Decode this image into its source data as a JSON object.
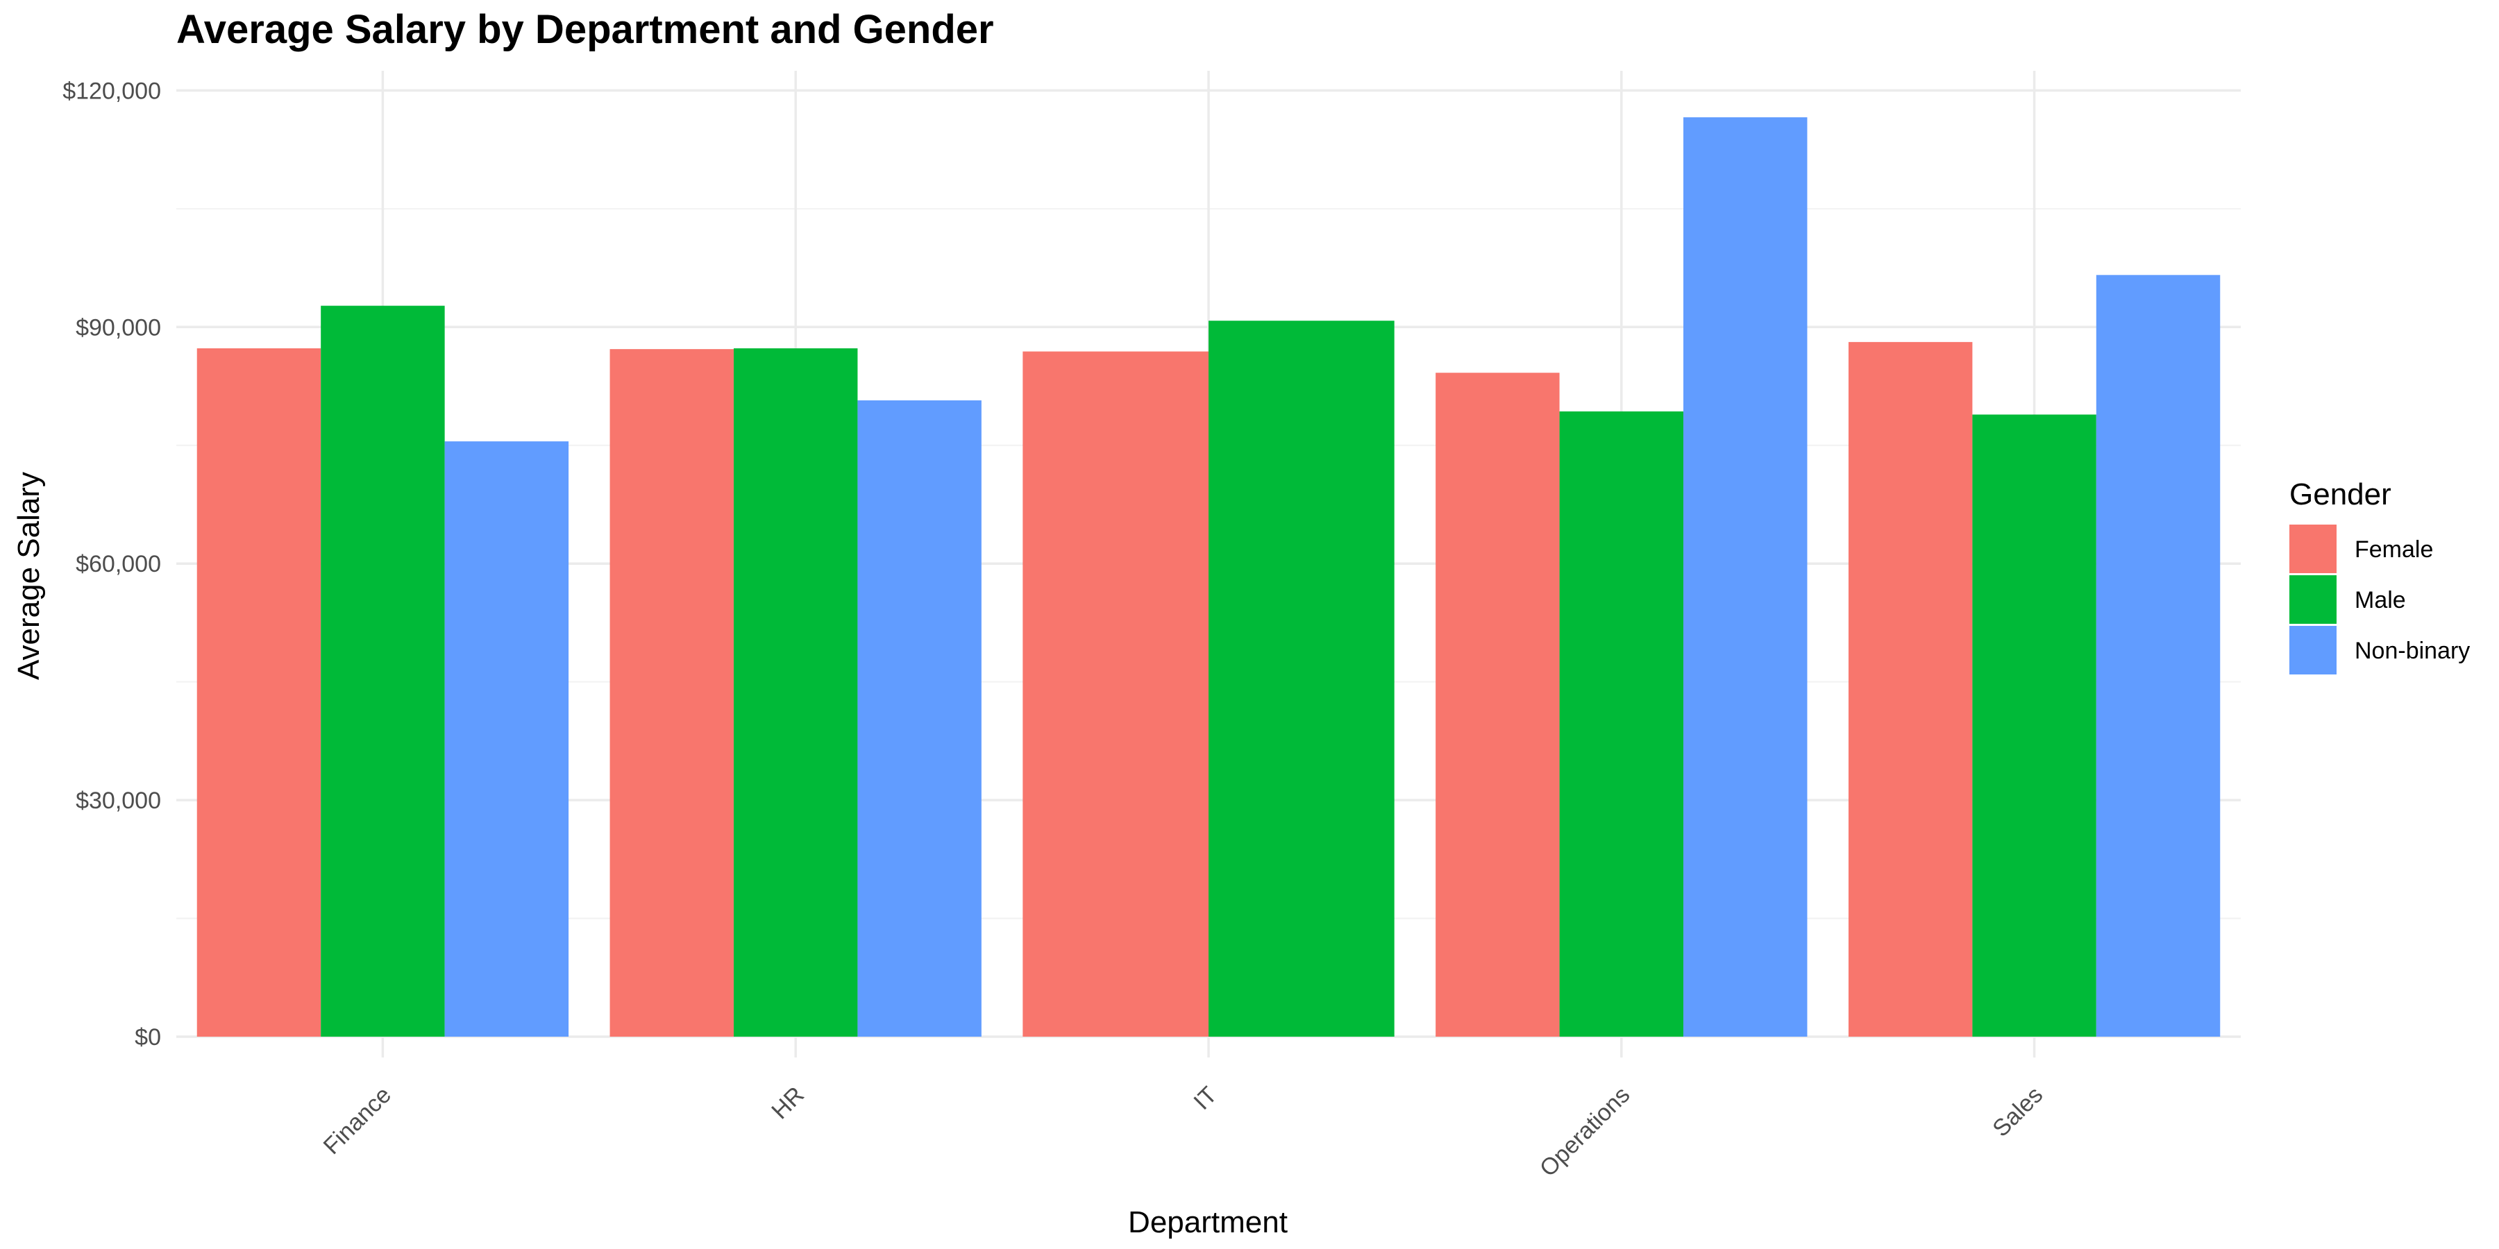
{
  "chart_data": {
    "type": "bar",
    "title": "Average Salary by Department and Gender",
    "xlabel": "Department",
    "ylabel": "Average Salary",
    "categories": [
      "Finance",
      "HR",
      "IT",
      "Operations",
      "Sales"
    ],
    "series": [
      {
        "name": "Female",
        "color": "#F8766D",
        "values": [
          87300,
          87200,
          86900,
          84200,
          88100
        ]
      },
      {
        "name": "Male",
        "color": "#00BA38",
        "values": [
          92700,
          87300,
          90800,
          79300,
          78900
        ]
      },
      {
        "name": "Non-binary",
        "color": "#619CFF",
        "values": [
          75500,
          80700,
          null,
          116600,
          96600
        ]
      }
    ],
    "ylim": [
      0,
      122500
    ],
    "y_ticks": [
      0,
      30000,
      60000,
      90000,
      120000
    ],
    "y_tick_labels": [
      "$0",
      "$30,000",
      "$60,000",
      "$90,000",
      "$120,000"
    ],
    "grid": true,
    "x_tick_rotation_deg": 45,
    "legend": {
      "title": "Gender",
      "position": "right"
    }
  }
}
